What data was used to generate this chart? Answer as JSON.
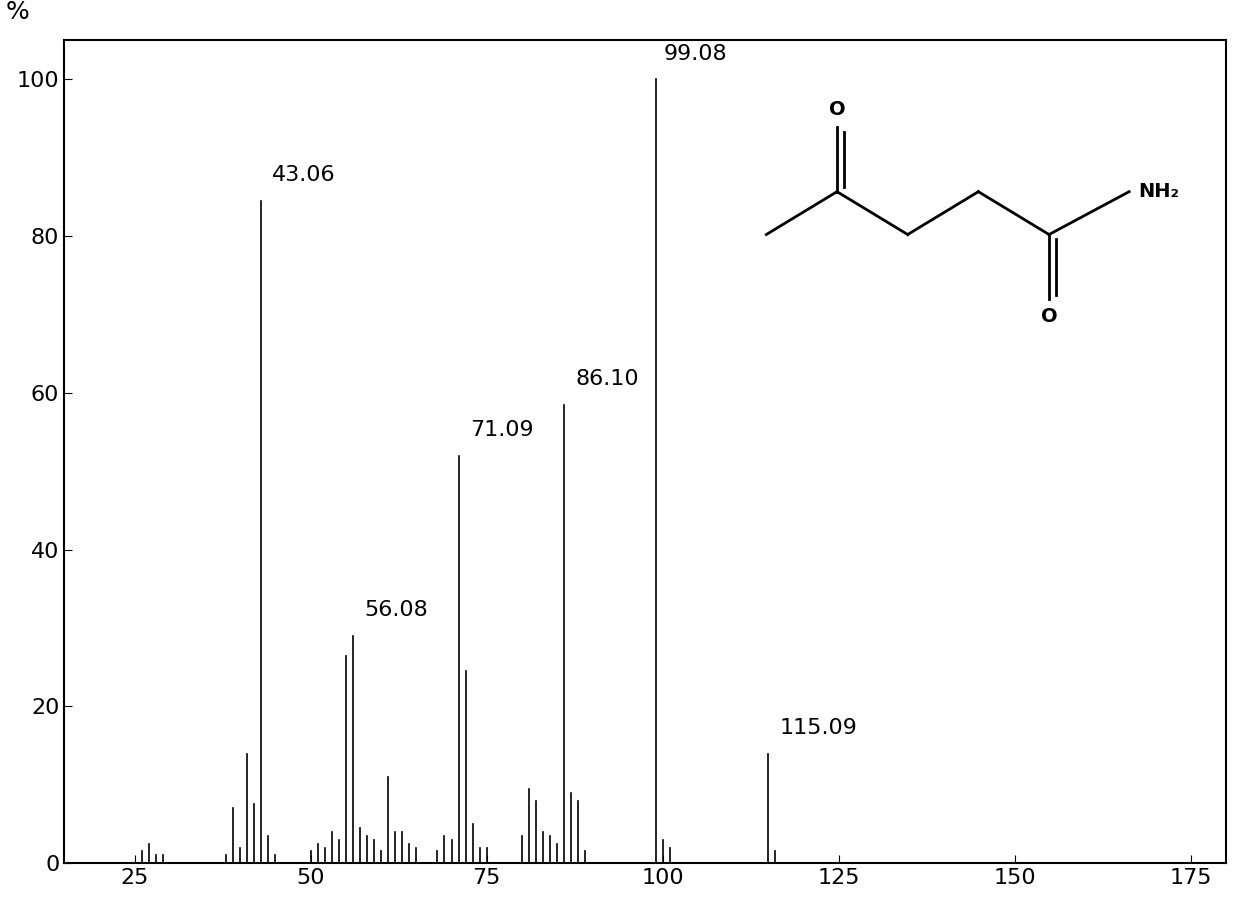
{
  "title": "",
  "xlabel": "",
  "ylabel": "%",
  "xlim": [
    15,
    180
  ],
  "ylim": [
    0,
    105
  ],
  "xticks": [
    25,
    50,
    75,
    100,
    125,
    150,
    175
  ],
  "yticks": [
    0,
    20,
    40,
    60,
    80,
    100
  ],
  "background_color": "#ffffff",
  "peaks": [
    {
      "mz": 15,
      "intensity": 1.0
    },
    {
      "mz": 26,
      "intensity": 1.5
    },
    {
      "mz": 27,
      "intensity": 2.5
    },
    {
      "mz": 28,
      "intensity": 1.0
    },
    {
      "mz": 29,
      "intensity": 1.0
    },
    {
      "mz": 38,
      "intensity": 1.0
    },
    {
      "mz": 39,
      "intensity": 7.0
    },
    {
      "mz": 40,
      "intensity": 2.0
    },
    {
      "mz": 41,
      "intensity": 14.0
    },
    {
      "mz": 42,
      "intensity": 7.5
    },
    {
      "mz": 43,
      "intensity": 84.5
    },
    {
      "mz": 44,
      "intensity": 3.5
    },
    {
      "mz": 45,
      "intensity": 1.0
    },
    {
      "mz": 50,
      "intensity": 1.5
    },
    {
      "mz": 51,
      "intensity": 2.5
    },
    {
      "mz": 52,
      "intensity": 2.0
    },
    {
      "mz": 53,
      "intensity": 4.0
    },
    {
      "mz": 54,
      "intensity": 3.0
    },
    {
      "mz": 55,
      "intensity": 26.5
    },
    {
      "mz": 56,
      "intensity": 29.0
    },
    {
      "mz": 57,
      "intensity": 4.5
    },
    {
      "mz": 58,
      "intensity": 3.5
    },
    {
      "mz": 59,
      "intensity": 3.0
    },
    {
      "mz": 60,
      "intensity": 1.5
    },
    {
      "mz": 61,
      "intensity": 11.0
    },
    {
      "mz": 62,
      "intensity": 4.0
    },
    {
      "mz": 63,
      "intensity": 4.0
    },
    {
      "mz": 64,
      "intensity": 2.5
    },
    {
      "mz": 65,
      "intensity": 2.0
    },
    {
      "mz": 68,
      "intensity": 1.5
    },
    {
      "mz": 69,
      "intensity": 3.5
    },
    {
      "mz": 70,
      "intensity": 3.0
    },
    {
      "mz": 71,
      "intensity": 52.0
    },
    {
      "mz": 72,
      "intensity": 24.5
    },
    {
      "mz": 73,
      "intensity": 5.0
    },
    {
      "mz": 74,
      "intensity": 2.0
    },
    {
      "mz": 75,
      "intensity": 2.0
    },
    {
      "mz": 80,
      "intensity": 3.5
    },
    {
      "mz": 81,
      "intensity": 9.5
    },
    {
      "mz": 82,
      "intensity": 8.0
    },
    {
      "mz": 83,
      "intensity": 4.0
    },
    {
      "mz": 84,
      "intensity": 3.5
    },
    {
      "mz": 85,
      "intensity": 2.5
    },
    {
      "mz": 86,
      "intensity": 58.5
    },
    {
      "mz": 87,
      "intensity": 9.0
    },
    {
      "mz": 88,
      "intensity": 8.0
    },
    {
      "mz": 89,
      "intensity": 1.5
    },
    {
      "mz": 99,
      "intensity": 100.0
    },
    {
      "mz": 100,
      "intensity": 3.0
    },
    {
      "mz": 101,
      "intensity": 2.0
    },
    {
      "mz": 115,
      "intensity": 14.0
    },
    {
      "mz": 116,
      "intensity": 1.5
    }
  ],
  "labeled_peaks": [
    {
      "mz": 43.06,
      "intensity": 84.5,
      "label": "43.06"
    },
    {
      "mz": 56.08,
      "intensity": 29.0,
      "label": "56.08"
    },
    {
      "mz": 71.09,
      "intensity": 52.0,
      "label": "71.09"
    },
    {
      "mz": 86.1,
      "intensity": 58.5,
      "label": "86.10"
    },
    {
      "mz": 99.08,
      "intensity": 100.0,
      "label": "99.08"
    },
    {
      "mz": 115.09,
      "intensity": 14.0,
      "label": "115.09"
    }
  ],
  "bar_color": "#000000",
  "bar_width": 0.6,
  "label_fontsize": 16,
  "tick_fontsize": 16,
  "ylabel_fontsize": 18
}
